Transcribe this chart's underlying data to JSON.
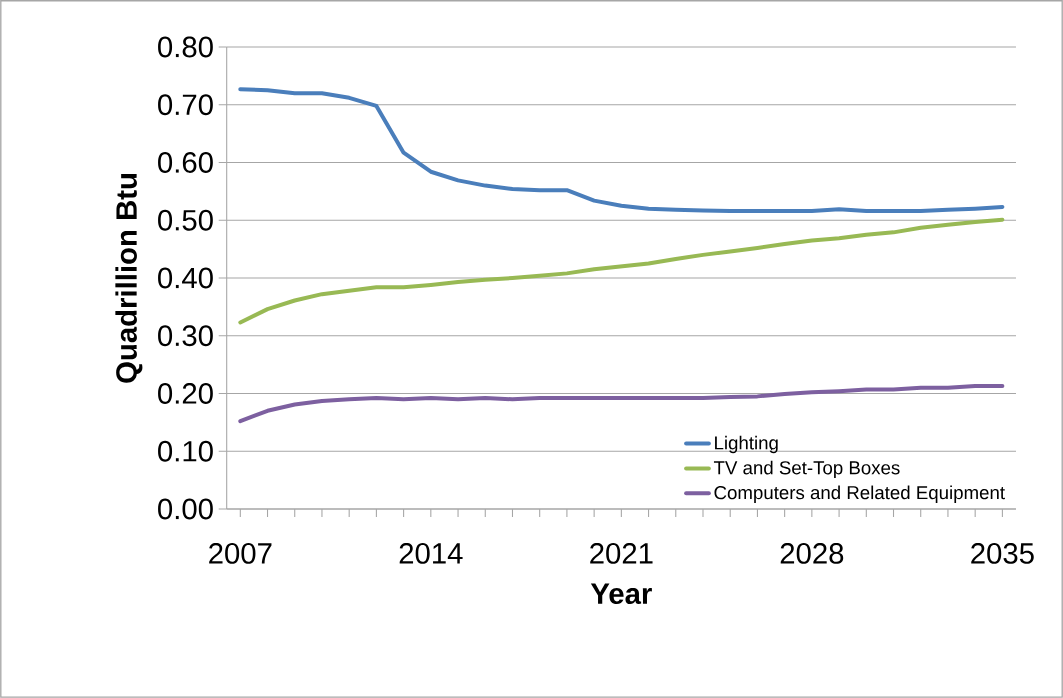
{
  "chart_data": {
    "type": "line",
    "xlabel": "Year",
    "ylabel": "Quadrillion Btu",
    "x": [
      2007,
      2008,
      2009,
      2010,
      2011,
      2012,
      2013,
      2014,
      2015,
      2016,
      2017,
      2018,
      2019,
      2020,
      2021,
      2022,
      2023,
      2024,
      2025,
      2026,
      2027,
      2028,
      2029,
      2030,
      2031,
      2032,
      2033,
      2034,
      2035
    ],
    "series": [
      {
        "name": "Lighting",
        "color": "#4a7ebb",
        "values": [
          0.727,
          0.725,
          0.72,
          0.72,
          0.712,
          0.698,
          0.617,
          0.584,
          0.569,
          0.56,
          0.554,
          0.552,
          0.552,
          0.534,
          0.525,
          0.52,
          0.518,
          0.517,
          0.516,
          0.516,
          0.516,
          0.516,
          0.519,
          0.516,
          0.516,
          0.516,
          0.518,
          0.52,
          0.523
        ]
      },
      {
        "name": "TV and Set-Top Boxes",
        "color": "#98b954",
        "values": [
          0.323,
          0.346,
          0.361,
          0.372,
          0.378,
          0.384,
          0.384,
          0.388,
          0.393,
          0.397,
          0.4,
          0.404,
          0.408,
          0.415,
          0.42,
          0.425,
          0.433,
          0.44,
          0.446,
          0.452,
          0.459,
          0.465,
          0.469,
          0.475,
          0.479,
          0.487,
          0.492,
          0.497,
          0.501
        ]
      },
      {
        "name": "Computers and Related Equipment",
        "color": "#7d60a0",
        "values": [
          0.152,
          0.17,
          0.181,
          0.187,
          0.19,
          0.192,
          0.19,
          0.192,
          0.19,
          0.192,
          0.19,
          0.192,
          0.192,
          0.192,
          0.192,
          0.192,
          0.192,
          0.192,
          0.194,
          0.195,
          0.199,
          0.202,
          0.204,
          0.207,
          0.207,
          0.21,
          0.21,
          0.213,
          0.213
        ]
      }
    ],
    "xlim": [
      2006.5,
      2035.5
    ],
    "xticks": [
      2007,
      2014,
      2021,
      2028,
      2035
    ],
    "ylim": [
      0,
      0.8
    ],
    "yticks": [
      {
        "value": 0,
        "label": "0.00"
      },
      {
        "value": 0.1,
        "label": "0.10"
      },
      {
        "value": 0.2,
        "label": "0.20"
      },
      {
        "value": 0.3,
        "label": "0.30"
      },
      {
        "value": 0.4,
        "label": "0.40"
      },
      {
        "value": 0.5,
        "label": "0.50"
      },
      {
        "value": 0.6,
        "label": "0.60"
      },
      {
        "value": 0.7,
        "label": "0.70"
      },
      {
        "value": 0.8,
        "label": "0.80"
      }
    ],
    "grid": "y",
    "legend": "bottom right",
    "marker": "none",
    "line_style": "solid"
  }
}
